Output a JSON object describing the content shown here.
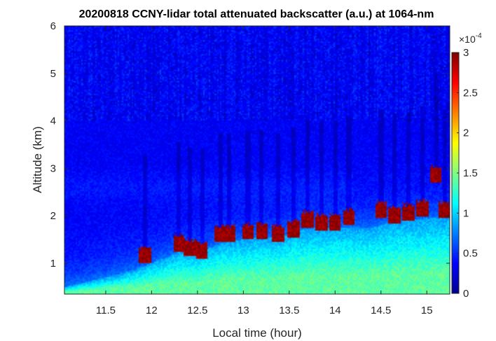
{
  "chart_data": {
    "type": "heatmap",
    "title": "20200818 CCNY-lidar total attenuated backscatter (a.u.) at 1064-nm",
    "xlabel": "Local time (hour)",
    "ylabel": "Altitude (km)",
    "xlim": [
      11.05,
      15.25
    ],
    "ylim": [
      0.35,
      6
    ],
    "xticks": [
      "11.5",
      "12",
      "12.5",
      "13",
      "13.5",
      "14",
      "14.5",
      "15"
    ],
    "xtick_values": [
      11.5,
      12,
      12.5,
      13,
      13.5,
      14,
      14.5,
      15
    ],
    "yticks": [
      "1",
      "2",
      "3",
      "4",
      "5",
      "6"
    ],
    "ytick_values": [
      1,
      2,
      3,
      4,
      5,
      6
    ],
    "colorbar": {
      "colormap": "jet",
      "clim": [
        0,
        3
      ],
      "ticks": [
        "0",
        "0.5",
        "1",
        "1.5",
        "2",
        "2.5",
        "3"
      ],
      "tick_values": [
        0,
        0.5,
        1,
        1.5,
        2,
        2.5,
        3
      ],
      "exponent_base": "×10",
      "exponent_power": "-4"
    },
    "boundary_layer_top_km": {
      "x": [
        11.05,
        11.5,
        11.8,
        12.0,
        12.2,
        12.3,
        12.5,
        12.6,
        12.8,
        13.0,
        13.2,
        13.4,
        13.6,
        13.8,
        14.0,
        14.2,
        14.4,
        14.6,
        14.8,
        15.0,
        15.1,
        15.25
      ],
      "y": [
        0.5,
        0.7,
        0.85,
        1.0,
        1.15,
        1.25,
        1.2,
        1.3,
        1.45,
        1.5,
        1.55,
        1.55,
        1.7,
        1.75,
        1.75,
        1.75,
        1.75,
        1.85,
        1.9,
        1.95,
        1.95,
        1.95
      ]
    },
    "cloud_base_km": [
      {
        "x": 11.93,
        "y": 1.0
      },
      {
        "x": 12.3,
        "y": 1.25
      },
      {
        "x": 12.42,
        "y": 1.15
      },
      {
        "x": 12.55,
        "y": 1.1
      },
      {
        "x": 12.75,
        "y": 1.45
      },
      {
        "x": 12.85,
        "y": 1.45
      },
      {
        "x": 13.05,
        "y": 1.5
      },
      {
        "x": 13.2,
        "y": 1.5
      },
      {
        "x": 13.38,
        "y": 1.45
      },
      {
        "x": 13.55,
        "y": 1.55
      },
      {
        "x": 13.7,
        "y": 1.75
      },
      {
        "x": 13.85,
        "y": 1.7
      },
      {
        "x": 14.0,
        "y": 1.7
      },
      {
        "x": 14.15,
        "y": 1.8
      },
      {
        "x": 14.5,
        "y": 1.95
      },
      {
        "x": 14.65,
        "y": 1.85
      },
      {
        "x": 14.8,
        "y": 1.9
      },
      {
        "x": 14.95,
        "y": 2.0
      },
      {
        "x": 15.1,
        "y": 2.7
      },
      {
        "x": 15.2,
        "y": 1.95
      }
    ]
  }
}
